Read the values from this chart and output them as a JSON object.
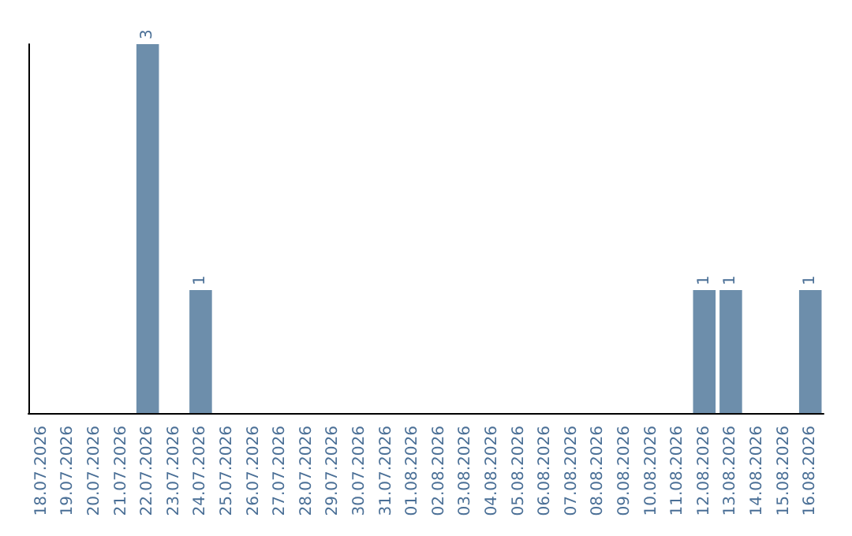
{
  "chart_data": {
    "type": "bar",
    "categories": [
      "18.07.2026",
      "19.07.2026",
      "20.07.2026",
      "21.07.2026",
      "22.07.2026",
      "23.07.2026",
      "24.07.2026",
      "25.07.2026",
      "26.07.2026",
      "27.07.2026",
      "28.07.2026",
      "29.07.2026",
      "30.07.2026",
      "31.07.2026",
      "01.08.2026",
      "02.08.2026",
      "03.08.2026",
      "04.08.2026",
      "05.08.2026",
      "06.08.2026",
      "07.08.2026",
      "08.08.2026",
      "09.08.2026",
      "10.08.2026",
      "11.08.2026",
      "12.08.2026",
      "13.08.2026",
      "14.08.2026",
      "15.08.2026",
      "16.08.2026"
    ],
    "values": [
      0,
      0,
      0,
      0,
      3,
      0,
      1,
      0,
      0,
      0,
      0,
      0,
      0,
      0,
      0,
      0,
      0,
      0,
      0,
      0,
      0,
      0,
      0,
      0,
      0,
      1,
      1,
      0,
      0,
      1
    ],
    "value_labels": [
      null,
      null,
      null,
      null,
      "3",
      null,
      "1",
      null,
      null,
      null,
      null,
      null,
      null,
      null,
      null,
      null,
      null,
      null,
      null,
      null,
      null,
      null,
      null,
      null,
      null,
      "1",
      "1",
      null,
      null,
      "1"
    ],
    "color": "#6d8eab",
    "grid": false
  }
}
